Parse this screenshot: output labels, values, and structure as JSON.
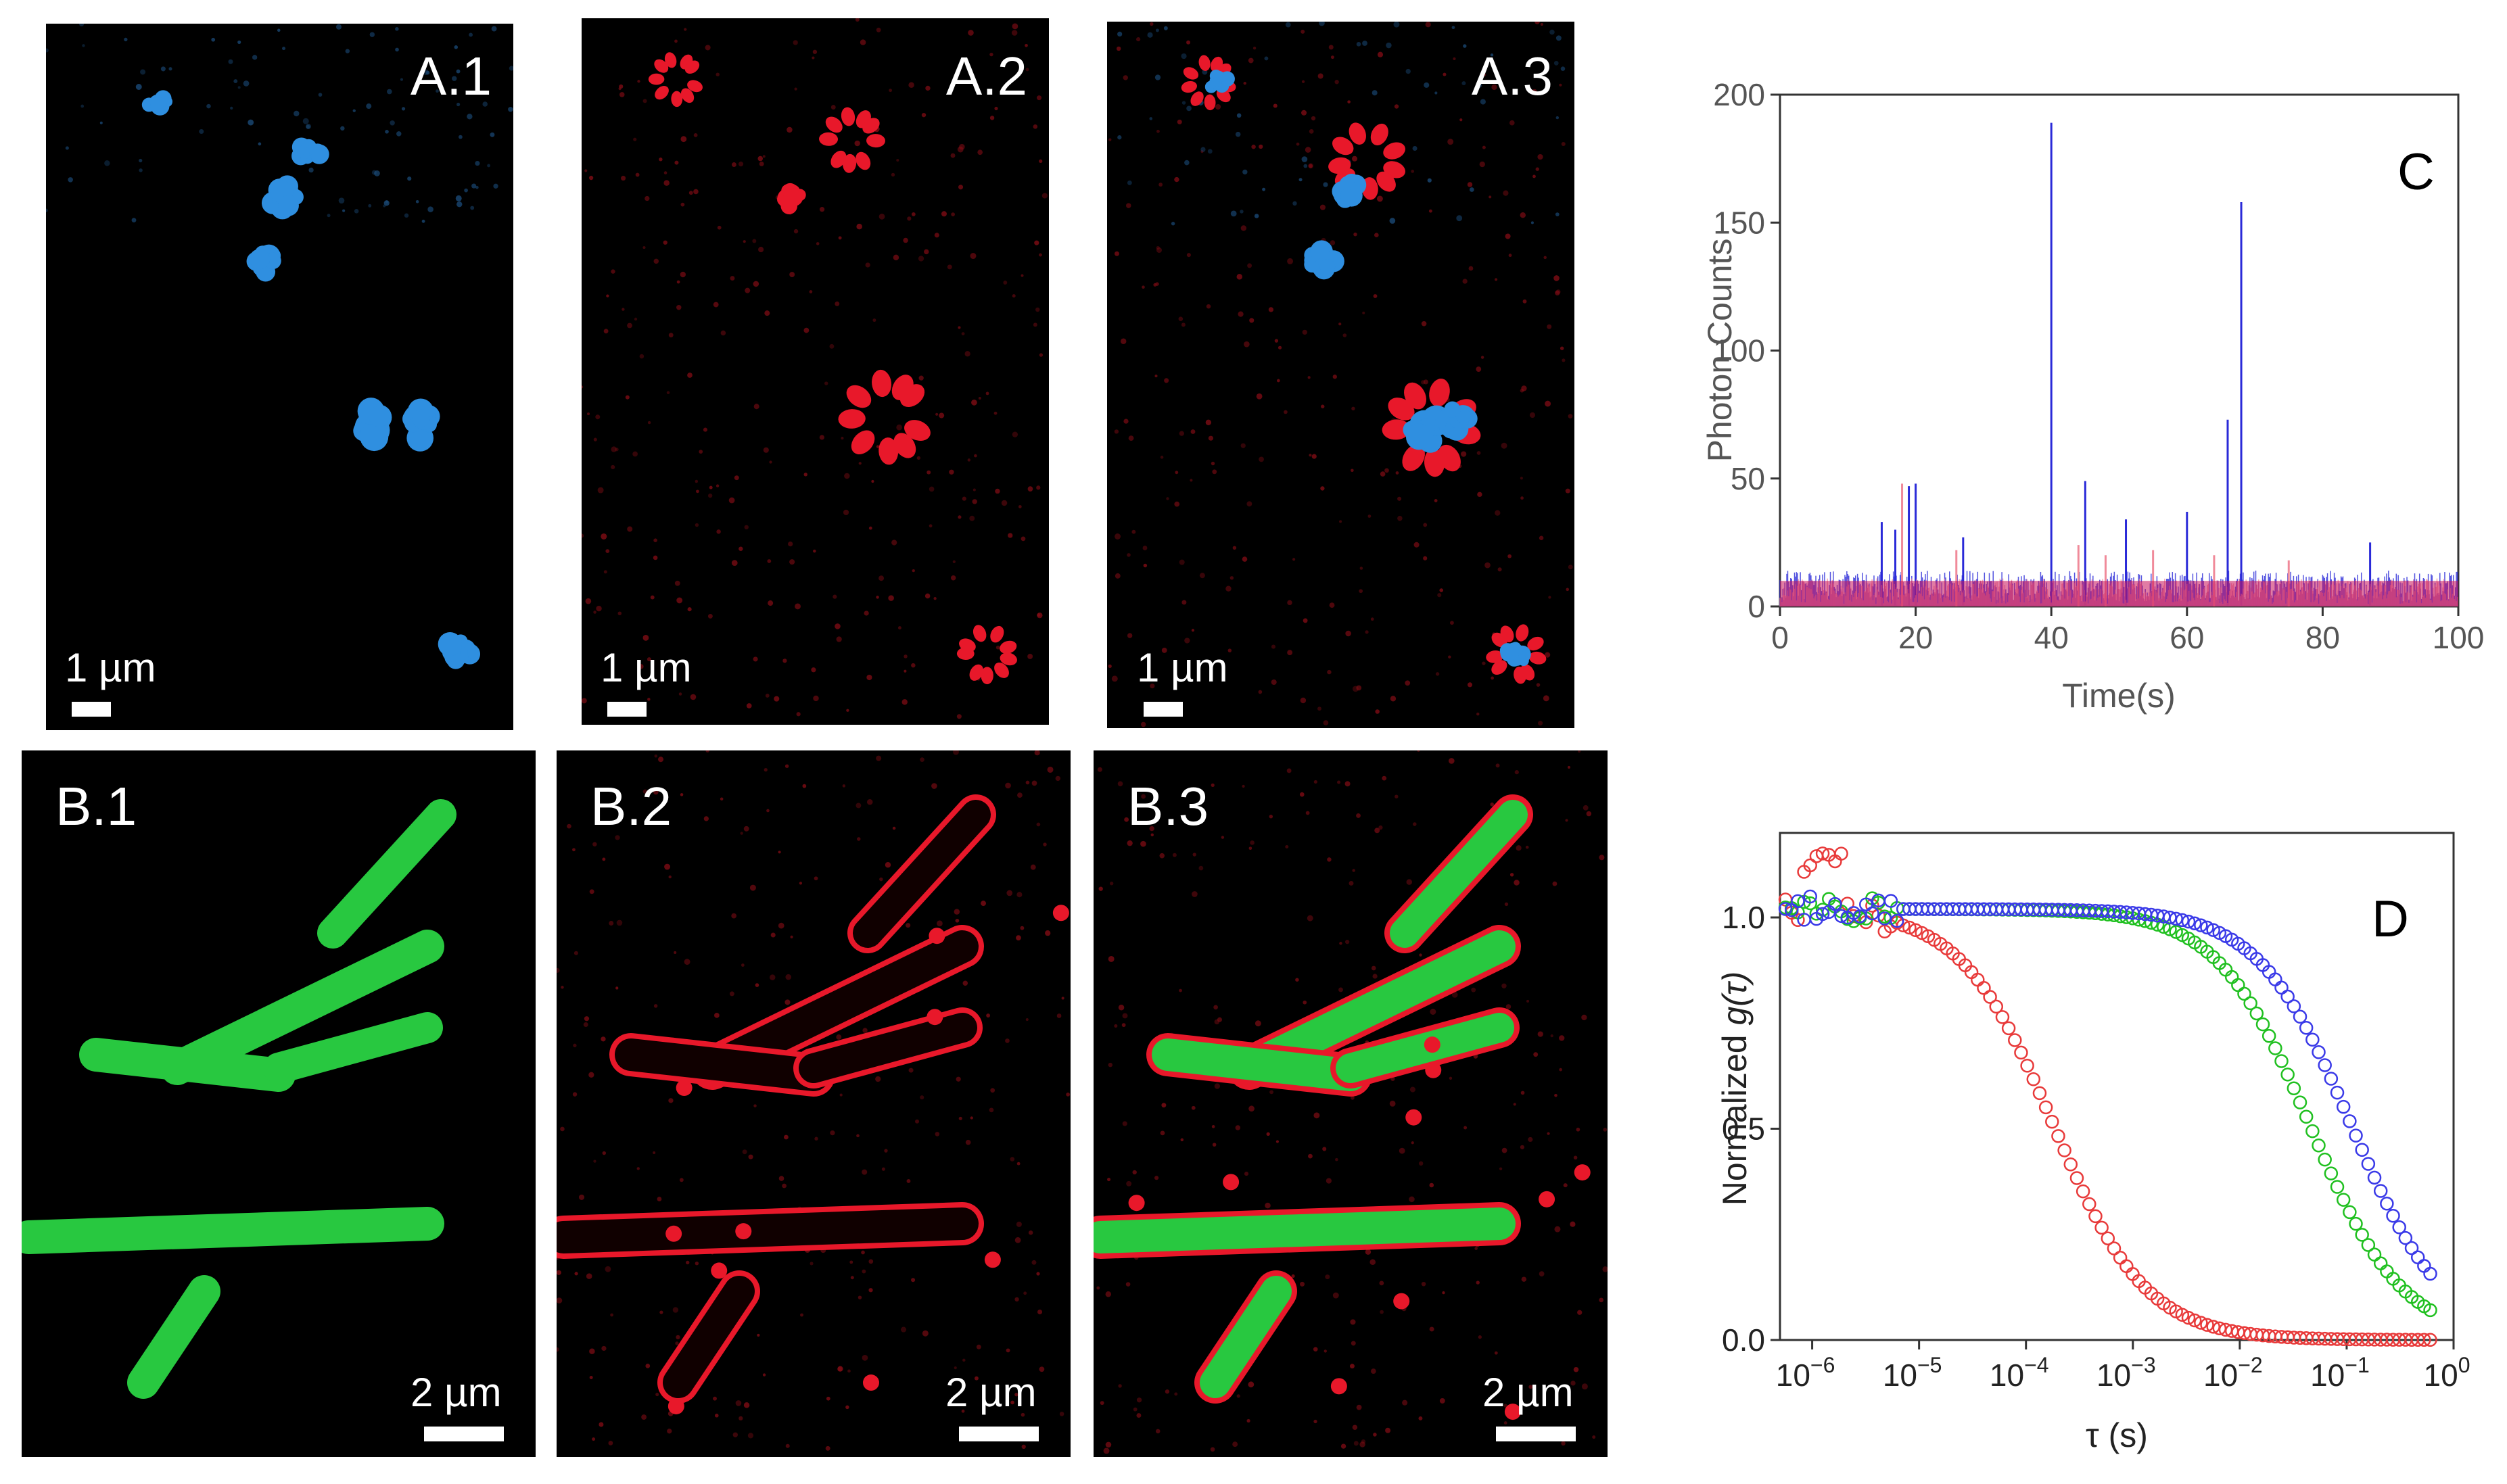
{
  "figure": {
    "panels": [
      {
        "id": "a1",
        "label": "A.1",
        "scale": "1 µm",
        "channel": "blue"
      },
      {
        "id": "a2",
        "label": "A.2",
        "scale": "1 µm",
        "channel": "red"
      },
      {
        "id": "a3",
        "label": "A.3",
        "scale": "1 µm",
        "channel": "merge"
      },
      {
        "id": "b1",
        "label": "B.1",
        "scale": "2 µm",
        "channel": "green"
      },
      {
        "id": "b2",
        "label": "B.2",
        "scale": "2 µm",
        "channel": "red"
      },
      {
        "id": "b3",
        "label": "B.3",
        "scale": "2 µm",
        "channel": "merge"
      }
    ],
    "colors": {
      "blue": "#2f8fe0",
      "red": "#e8182a",
      "green": "#28c840",
      "bg": "#000000"
    }
  },
  "chart_data": [
    {
      "type": "line",
      "panel_label": "C",
      "xlabel": "Time(s)",
      "ylabel": "Photon Counts",
      "xlim": [
        0,
        100
      ],
      "ylim": [
        0,
        200
      ],
      "xticks": [
        0,
        20,
        40,
        60,
        80,
        100
      ],
      "yticks": [
        0,
        50,
        100,
        150,
        200
      ],
      "series": [
        {
          "color": "#2a2ad8",
          "baseline": "noise 0-15",
          "spikes": [
            [
              15,
              33
            ],
            [
              17,
              30
            ],
            [
              19,
              47
            ],
            [
              20,
              48
            ],
            [
              27,
              27
            ],
            [
              40,
              189
            ],
            [
              45,
              49
            ],
            [
              51,
              34
            ],
            [
              60,
              37
            ],
            [
              66,
              73
            ],
            [
              68,
              158
            ],
            [
              87,
              25
            ]
          ]
        },
        {
          "color": "#f08a9a",
          "baseline": "noise 0-12",
          "spikes": [
            [
              18,
              48
            ],
            [
              26,
              22
            ],
            [
              44,
              24
            ],
            [
              48,
              20
            ],
            [
              55,
              22
            ],
            [
              64,
              20
            ],
            [
              75,
              18
            ]
          ]
        }
      ]
    },
    {
      "type": "scatter",
      "panel_label": "D",
      "xlabel": "τ (s)",
      "ylabel": "Normalized g(τ)",
      "xscale": "log",
      "xlim": [
        5e-07,
        1
      ],
      "ylim": [
        0,
        1.2
      ],
      "yticks": [
        "0.0",
        "0.5",
        "1.0"
      ],
      "xtick_labels": [
        {
          "base": "10",
          "exp": "−6"
        },
        {
          "base": "10",
          "exp": "−5"
        },
        {
          "base": "10",
          "exp": "−4"
        },
        {
          "base": "10",
          "exp": "−3"
        },
        {
          "base": "10",
          "exp": "−2"
        },
        {
          "base": "10",
          "exp": "−1"
        },
        {
          "base": "10",
          "exp": "0"
        }
      ],
      "series": [
        {
          "color": "#e83a3a",
          "tau_diffusion": 0.00018,
          "amplitude": 1.02
        },
        {
          "color": "#20c020",
          "tau_diffusion": 0.045,
          "amplitude": 1.02
        },
        {
          "color": "#3a3ae8",
          "tau_diffusion": 0.11,
          "amplitude": 1.02
        }
      ]
    }
  ]
}
